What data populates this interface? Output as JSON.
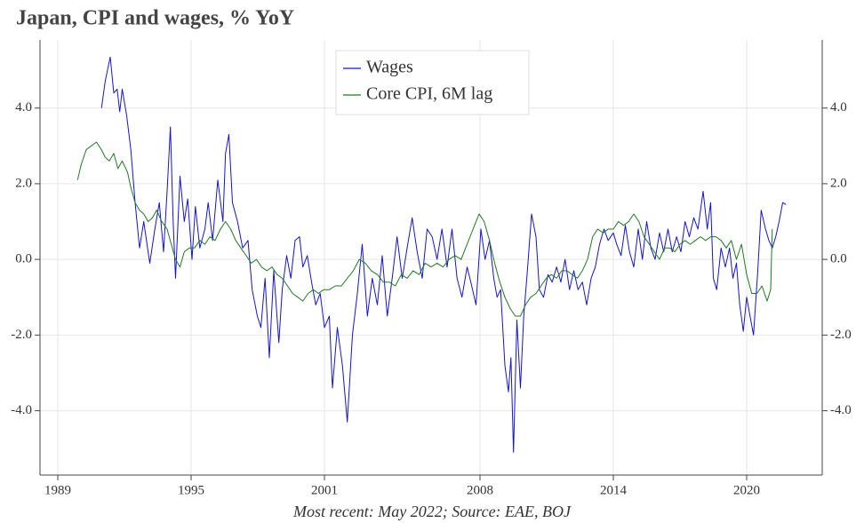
{
  "chart_data": {
    "type": "line",
    "title": "Japan, CPI and wages, % YoY",
    "footer": "Most recent: May 2022; Source: EAE, BOJ",
    "xlim": [
      1988.2,
      2023.4
    ],
    "xticks": [
      1989,
      1995,
      2001,
      2008,
      2014,
      2020
    ],
    "ylim": [
      -5.7,
      5.8
    ],
    "yticks": [
      {
        "value": -4,
        "label": "-4.0"
      },
      {
        "value": -2,
        "label": "-2.0"
      },
      {
        "value": 0,
        "label": "0.0"
      },
      {
        "value": 2,
        "label": "2.0"
      },
      {
        "value": 4,
        "label": "4.0"
      }
    ],
    "y2lim": [
      -5.7,
      5.8
    ],
    "y2ticks": [
      {
        "value": -4,
        "label": "-4.0"
      },
      {
        "value": -2,
        "label": "-2.0"
      },
      {
        "value": 0,
        "label": "0.0"
      },
      {
        "value": 2,
        "label": "2.0"
      },
      {
        "value": 4,
        "label": "4.0"
      }
    ],
    "grid": true,
    "legend": "upper center",
    "series": [
      {
        "name": "Wages",
        "color": "#1414d2",
        "x": [
          1990.97,
          1991.13,
          1991.36,
          1991.52,
          1991.67,
          1991.79,
          1991.9,
          1992.1,
          1992.29,
          1992.48,
          1992.68,
          1992.87,
          1993.14,
          1993.37,
          1993.57,
          1993.76,
          1993.92,
          1994.07,
          1994.19,
          1994.3,
          1994.5,
          1994.69,
          1994.85,
          1995.04,
          1995.19,
          1995.39,
          1995.62,
          1995.77,
          1995.97,
          1996.2,
          1996.43,
          1996.55,
          1996.7,
          1996.86,
          1997.09,
          1997.32,
          1997.56,
          1997.75,
          1997.98,
          1998.14,
          1998.33,
          1998.52,
          1998.72,
          1998.95,
          1999.1,
          1999.3,
          1999.49,
          1999.68,
          1999.88,
          2000.03,
          2000.23,
          2000.42,
          2000.61,
          2000.81,
          2001.0,
          2001.22,
          2001.36,
          2001.58,
          2001.81,
          2002.03,
          2002.26,
          2002.48,
          2002.7,
          2002.93,
          2003.15,
          2003.38,
          2003.6,
          2003.83,
          2004.05,
          2004.27,
          2004.5,
          2004.72,
          2004.95,
          2005.17,
          2005.4,
          2005.62,
          2005.85,
          2006.07,
          2006.29,
          2006.52,
          2006.74,
          2006.97,
          2007.19,
          2007.42,
          2007.59,
          2007.82,
          2008.04,
          2008.23,
          2008.43,
          2008.62,
          2008.77,
          2008.93,
          2009.12,
          2009.28,
          2009.39,
          2009.51,
          2009.66,
          2009.82,
          2009.97,
          2010.13,
          2010.32,
          2010.52,
          2010.67,
          2010.86,
          2011.06,
          2011.25,
          2011.45,
          2011.64,
          2011.83,
          2012.03,
          2012.22,
          2012.41,
          2012.61,
          2012.8,
          2013.0,
          2013.19,
          2013.38,
          2013.58,
          2013.77,
          2014.0,
          2014.15,
          2014.35,
          2014.54,
          2014.73,
          2014.92,
          2015.12,
          2015.31,
          2015.5,
          2015.69,
          2015.88,
          2016.08,
          2016.27,
          2016.46,
          2016.65,
          2016.85,
          2017.04,
          2017.23,
          2017.42,
          2017.62,
          2017.81,
          2018.04,
          2018.23,
          2018.38,
          2018.5,
          2018.65,
          2018.85,
          2019.04,
          2019.23,
          2019.38,
          2019.54,
          2019.69,
          2019.85,
          2020.0,
          2020.15,
          2020.31,
          2020.5,
          2020.65,
          2020.85,
          2021.0,
          2021.15,
          2021.31,
          2021.46,
          2021.62,
          2021.77
        ],
        "values": [
          4.0,
          4.7,
          5.35,
          4.4,
          4.5,
          3.9,
          4.5,
          3.8,
          2.9,
          1.5,
          0.3,
          1.0,
          -0.1,
          0.8,
          1.5,
          0.2,
          1.8,
          3.5,
          1.0,
          -0.5,
          2.2,
          1.0,
          1.6,
          0.0,
          1.4,
          0.3,
          0.8,
          1.5,
          0.5,
          2.1,
          1.0,
          2.8,
          3.3,
          1.5,
          1.0,
          0.3,
          0.5,
          -0.8,
          -1.5,
          -1.8,
          -0.5,
          -2.6,
          -0.3,
          -2.2,
          -0.8,
          0.1,
          -0.5,
          0.5,
          0.6,
          -0.2,
          0.1,
          -0.6,
          -1.2,
          -0.9,
          -1.8,
          -1.5,
          -3.4,
          -1.8,
          -2.8,
          -4.3,
          -2.0,
          -0.9,
          0.4,
          -1.5,
          -0.5,
          -1.2,
          0.1,
          -1.5,
          -0.5,
          0.6,
          -0.5,
          0.3,
          1.1,
          0.2,
          -0.5,
          0.8,
          0.6,
          0.0,
          0.8,
          -0.2,
          0.8,
          -0.5,
          -1.0,
          -0.2,
          -0.6,
          -1.2,
          0.8,
          0.0,
          0.5,
          -0.5,
          -1.0,
          -0.8,
          -2.8,
          -3.5,
          -2.6,
          -5.1,
          -1.6,
          -3.4,
          -1.5,
          -0.3,
          1.2,
          0.6,
          -0.8,
          -1.0,
          -0.4,
          -0.6,
          -0.2,
          -0.6,
          0.0,
          -0.8,
          -0.3,
          -0.8,
          -0.6,
          -1.2,
          -0.5,
          -0.2,
          0.4,
          0.8,
          0.5,
          0.7,
          0.4,
          0.1,
          0.9,
          0.2,
          -0.2,
          0.8,
          0.0,
          1.0,
          0.3,
          0.0,
          0.7,
          0.2,
          0.8,
          0.2,
          0.6,
          0.2,
          1.0,
          0.6,
          1.1,
          0.8,
          1.8,
          0.8,
          1.5,
          -0.5,
          -0.8,
          0.3,
          -0.2,
          0.3,
          -0.5,
          -0.1,
          -1.2,
          -1.9,
          -1.0,
          -1.5,
          -2.0,
          -0.3,
          1.3,
          0.8,
          0.5,
          0.3,
          0.6,
          1.0,
          1.5,
          1.45
        ]
      },
      {
        "name": "Core CPI, 6M lag",
        "color": "#1f7a1f",
        "x": [
          1989.89,
          1990.05,
          1990.28,
          1990.51,
          1990.74,
          1990.97,
          1991.13,
          1991.32,
          1991.52,
          1991.71,
          1991.9,
          1992.14,
          1992.29,
          1992.48,
          1992.68,
          1992.87,
          1993.07,
          1993.26,
          1993.45,
          1993.68,
          1993.92,
          1994.11,
          1994.3,
          1994.5,
          1994.69,
          1994.92,
          1995.15,
          1995.39,
          1995.62,
          1995.85,
          1996.08,
          1996.32,
          1996.55,
          1996.78,
          1997.01,
          1997.24,
          1997.48,
          1997.71,
          1997.94,
          1998.17,
          1998.41,
          1998.64,
          1998.87,
          1999.1,
          1999.34,
          1999.57,
          1999.8,
          2000.03,
          2000.27,
          2000.5,
          2000.73,
          2000.96,
          2001.22,
          2001.49,
          2001.76,
          2002.03,
          2002.3,
          2002.57,
          2002.84,
          2003.11,
          2003.38,
          2003.65,
          2003.92,
          2004.19,
          2004.46,
          2004.72,
          2004.99,
          2005.26,
          2005.53,
          2005.8,
          2006.07,
          2006.34,
          2006.61,
          2006.88,
          2007.15,
          2007.42,
          2007.69,
          2007.96,
          2008.19,
          2008.43,
          2008.66,
          2008.89,
          2009.12,
          2009.36,
          2009.59,
          2009.82,
          2010.05,
          2010.28,
          2010.52,
          2010.75,
          2010.98,
          2011.21,
          2011.45,
          2011.68,
          2011.91,
          2012.14,
          2012.38,
          2012.61,
          2012.84,
          2013.07,
          2013.3,
          2013.54,
          2013.77,
          2014.0,
          2014.23,
          2014.46,
          2014.69,
          2014.92,
          2015.15,
          2015.38,
          2015.62,
          2015.85,
          2016.08,
          2016.31,
          2016.54,
          2016.77,
          2017.0,
          2017.23,
          2017.46,
          2017.69,
          2017.92,
          2018.15,
          2018.38,
          2018.62,
          2018.85,
          2019.08,
          2019.31,
          2019.54,
          2019.77,
          2020.0,
          2020.23,
          2020.46,
          2020.69,
          2020.92,
          2021.08,
          2021.15
        ],
        "values": [
          2.1,
          2.5,
          2.9,
          3.0,
          3.1,
          2.9,
          2.7,
          2.6,
          2.8,
          2.4,
          2.6,
          2.3,
          1.9,
          1.5,
          1.3,
          1.2,
          1.0,
          1.1,
          1.3,
          1.0,
          0.8,
          0.4,
          0.0,
          -0.2,
          0.2,
          0.3,
          0.3,
          0.5,
          0.4,
          0.6,
          0.5,
          0.8,
          1.0,
          0.8,
          0.5,
          0.3,
          0.1,
          -0.1,
          0.0,
          -0.2,
          -0.3,
          -0.2,
          -0.4,
          -0.5,
          -0.7,
          -0.9,
          -1.0,
          -1.1,
          -0.9,
          -0.8,
          -0.9,
          -0.8,
          -0.8,
          -0.7,
          -0.7,
          -0.5,
          -0.3,
          0.0,
          -0.1,
          -0.3,
          -0.4,
          -0.6,
          -0.6,
          -0.7,
          -0.4,
          -0.5,
          -0.3,
          -0.4,
          -0.1,
          -0.2,
          -0.1,
          -0.2,
          0.0,
          0.1,
          0.0,
          0.4,
          0.8,
          1.2,
          1.0,
          0.5,
          -0.1,
          -0.6,
          -1.0,
          -1.3,
          -1.5,
          -1.5,
          -1.2,
          -1.0,
          -0.9,
          -0.7,
          -0.5,
          -0.4,
          -0.5,
          -0.3,
          -0.3,
          -0.4,
          -0.5,
          -0.3,
          0.0,
          0.6,
          0.8,
          0.7,
          0.8,
          0.8,
          1.0,
          0.9,
          1.0,
          1.2,
          1.0,
          0.6,
          0.4,
          0.2,
          0.0,
          0.3,
          0.3,
          0.2,
          0.4,
          0.5,
          0.4,
          0.5,
          0.6,
          0.5,
          0.6,
          0.6,
          0.5,
          0.3,
          0.5,
          0.0,
          0.4,
          -0.4,
          -0.9,
          -0.9,
          -0.7,
          -1.1,
          -0.8,
          0.8
        ]
      }
    ]
  }
}
